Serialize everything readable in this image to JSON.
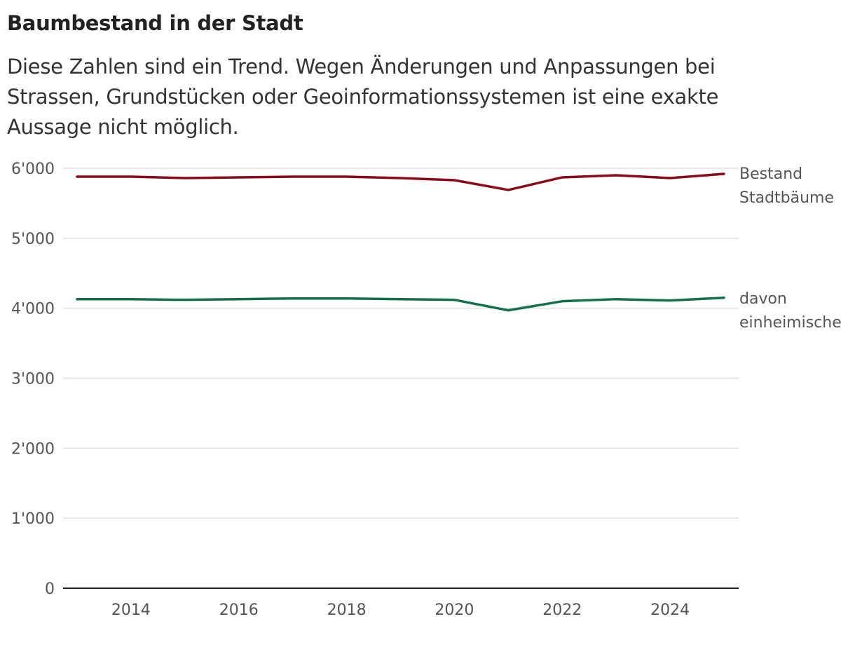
{
  "header": {
    "title": "Baumbestand in der Stadt",
    "subtitle": "Diese Zahlen sind ein Trend. Wegen Änderungen und Anpassungen bei Strassen, Grundstücken oder Geoinformationssystemen ist eine exakte Aussage nicht möglich."
  },
  "chart_data": {
    "type": "line",
    "title": "Baumbestand in der Stadt",
    "x": [
      2013,
      2014,
      2015,
      2016,
      2017,
      2018,
      2019,
      2020,
      2021,
      2022,
      2023,
      2024,
      2025
    ],
    "xlim": [
      2012.3,
      2025.3
    ],
    "ylim": [
      0,
      6000
    ],
    "x_ticks": [
      2014,
      2016,
      2018,
      2020,
      2022,
      2024
    ],
    "x_tick_labels": [
      "2014",
      "2016",
      "2018",
      "2020",
      "2022",
      "2024"
    ],
    "y_ticks": [
      0,
      1000,
      2000,
      3000,
      4000,
      5000,
      6000
    ],
    "y_tick_labels": [
      "0",
      "1'000",
      "2'000",
      "3'000",
      "4'000",
      "5'000",
      "6'000"
    ],
    "grid": true,
    "series": [
      {
        "name": "Bestand Stadtbäume",
        "label_lines": [
          "Bestand",
          "Stadtbäume"
        ],
        "color": "#8b0a16",
        "values": [
          5880,
          5880,
          5860,
          5870,
          5880,
          5880,
          5860,
          5830,
          5690,
          5870,
          5900,
          5860,
          5920
        ]
      },
      {
        "name": "davon einheimische",
        "label_lines": [
          "davon",
          "einheimische"
        ],
        "color": "#13704a",
        "values": [
          4130,
          4130,
          4120,
          4130,
          4140,
          4140,
          4130,
          4120,
          3970,
          4100,
          4130,
          4110,
          4150
        ]
      }
    ]
  }
}
